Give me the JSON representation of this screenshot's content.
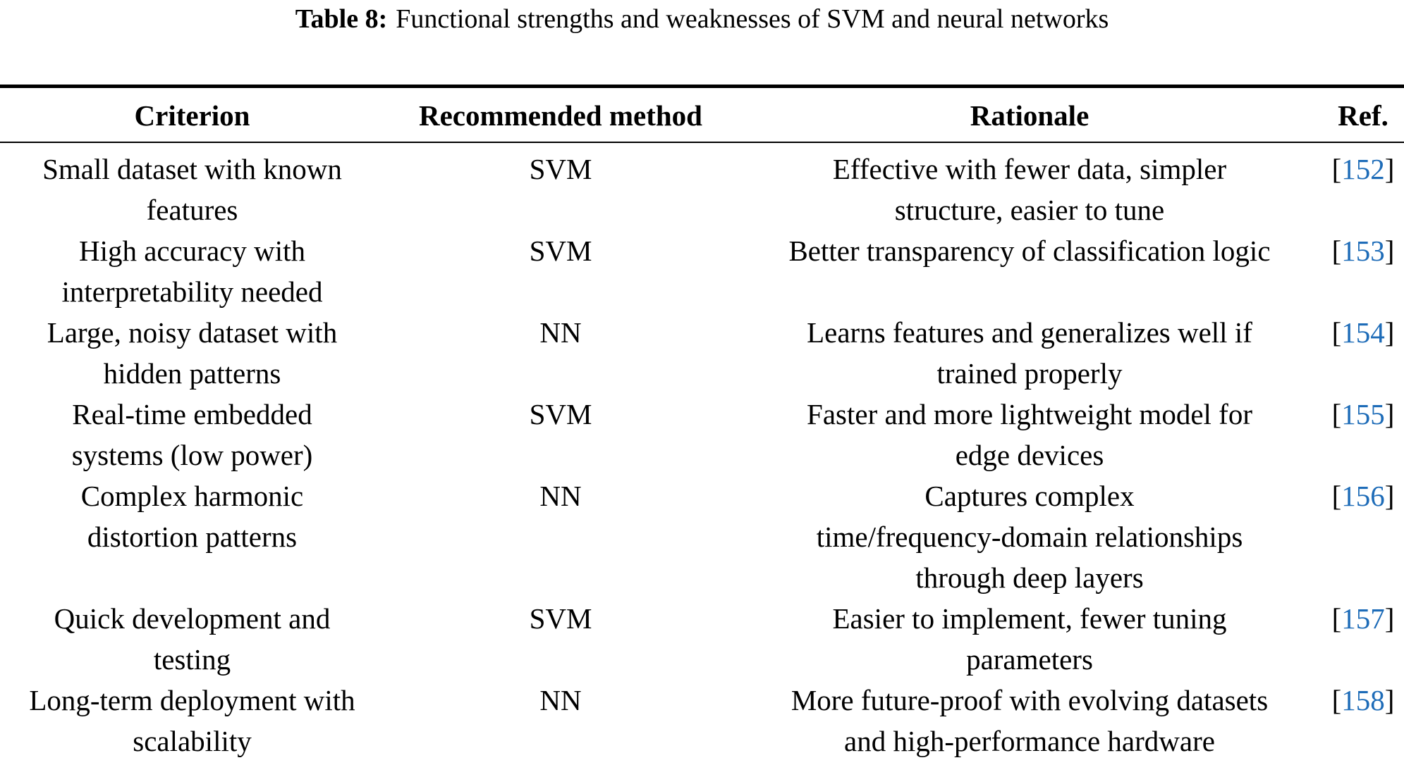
{
  "colors": {
    "link_blue": "#1e6cb8",
    "text": "#000000",
    "background": "#ffffff"
  },
  "caption": {
    "label": "Table 8:",
    "text": "Functional strengths and weaknesses of SVM and neural networks"
  },
  "table": {
    "headers": [
      "Criterion",
      "Recommended method",
      "Rationale",
      "Ref."
    ],
    "ref_brackets": [
      "[",
      "]"
    ],
    "rows": [
      {
        "criterion": "Small dataset with known\nfeatures",
        "method": "SVM",
        "rationale": "Effective with fewer data, simpler\nstructure, easier to tune",
        "ref": "152"
      },
      {
        "criterion": "High accuracy with\ninterpretability needed",
        "method": "SVM",
        "rationale": "Better transparency of classification logic",
        "ref": "153"
      },
      {
        "criterion": "Large, noisy dataset with\nhidden patterns",
        "method": "NN",
        "rationale": "Learns features and generalizes well if\ntrained properly",
        "ref": "154"
      },
      {
        "criterion": "Real-time embedded\nsystems (low power)",
        "method": "SVM",
        "rationale": "Faster and more lightweight model for\nedge devices",
        "ref": "155"
      },
      {
        "criterion": "Complex harmonic\ndistortion patterns",
        "method": "NN",
        "rationale": "Captures complex\ntime/frequency-domain relationships\nthrough deep layers",
        "ref": "156"
      },
      {
        "criterion": "Quick development and\ntesting",
        "method": "SVM",
        "rationale": "Easier to implement, fewer tuning\nparameters",
        "ref": "157"
      },
      {
        "criterion": "Long-term deployment with\nscalability",
        "method": "NN",
        "rationale": "More future-proof with evolving datasets\nand high-performance hardware",
        "ref": "158"
      }
    ]
  }
}
